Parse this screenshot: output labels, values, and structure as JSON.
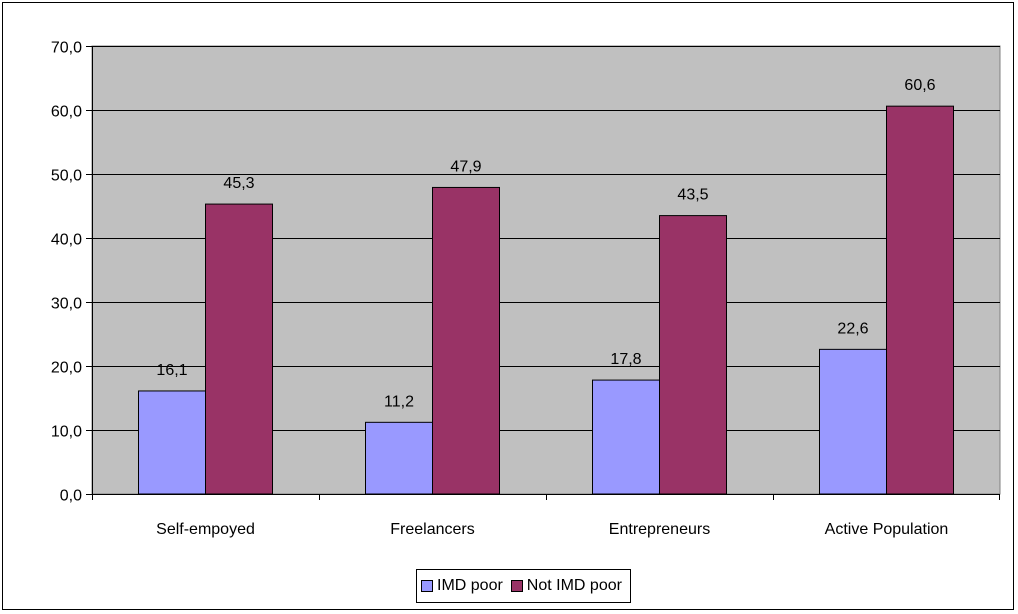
{
  "chart_data": {
    "type": "bar",
    "title": "",
    "xlabel": "",
    "ylabel": "",
    "categories": [
      "Self-empoyed",
      "Freelancers",
      "Entrepreneurs",
      "Active Population"
    ],
    "series": [
      {
        "name": "IMD poor",
        "values": [
          16.1,
          11.2,
          17.8,
          22.6
        ],
        "labels": [
          "16,1",
          "11,2",
          "17,8",
          "22,6"
        ],
        "color": "#9999ff"
      },
      {
        "name": "Not IMD poor",
        "values": [
          45.3,
          47.9,
          43.5,
          60.6
        ],
        "labels": [
          "45,3",
          "47,9",
          "43,5",
          "60,6"
        ],
        "color": "#993366"
      }
    ],
    "ylim": [
      0,
      70
    ],
    "yticks": [
      0,
      10,
      20,
      30,
      40,
      50,
      60,
      70
    ],
    "ytick_labels": [
      "0,0",
      "10,0",
      "20,0",
      "30,0",
      "40,0",
      "50,0",
      "60,0",
      "70,0"
    ],
    "grid": true,
    "plot_background": "#c0c0c0",
    "legend_position": "bottom"
  }
}
